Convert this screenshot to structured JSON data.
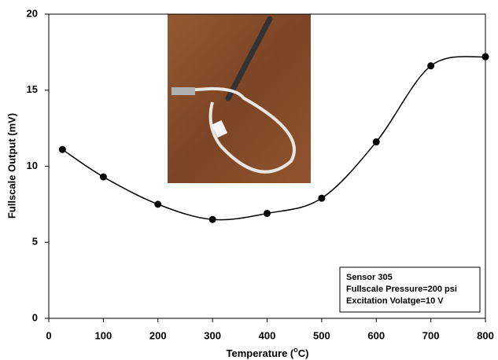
{
  "chart_data": {
    "type": "line",
    "x_label": {
      "before": "Temperature (",
      "sup": "o",
      "after": "C)"
    },
    "y_label": "Fullscale Output (mV)",
    "x": [
      25,
      100,
      200,
      300,
      400,
      500,
      600,
      700,
      800
    ],
    "series": [
      {
        "color": "#000000",
        "values": [
          11.1,
          9.3,
          7.5,
          6.5,
          6.9,
          7.9,
          11.6,
          16.6,
          17.2
        ]
      }
    ],
    "xlim": [
      0,
      800
    ],
    "xticks": [
      0,
      100,
      200,
      300,
      400,
      500,
      600,
      700,
      800
    ],
    "ylim": [
      0,
      20
    ],
    "yticks": [
      0,
      5,
      10,
      15,
      20
    ],
    "annotation": [
      "Sensor 305",
      "Fullscale Pressure=200 psi",
      "Excitation Volatge=10 V"
    ]
  }
}
